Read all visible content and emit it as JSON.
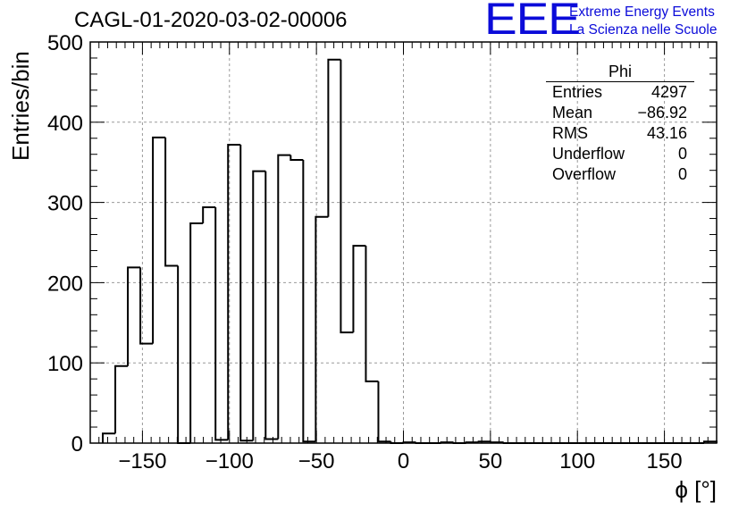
{
  "header": {
    "title": "CAGL-01-2020-03-02-00006",
    "logo": "EEE",
    "logo_line1": "Extreme Energy Events",
    "logo_line2": "La Scienza nelle Scuole"
  },
  "stats": {
    "name": "Phi",
    "rows": [
      {
        "label": "Entries",
        "value": "4297"
      },
      {
        "label": "Mean",
        "value": "−86.92"
      },
      {
        "label": "RMS",
        "value": "43.16"
      },
      {
        "label": "Underflow",
        "value": "0"
      },
      {
        "label": "Overflow",
        "value": "0"
      }
    ]
  },
  "chart_data": {
    "type": "bar",
    "style": "step-histogram",
    "xlabel": "ϕ [°]",
    "ylabel": "Entries/bin",
    "xlim": [
      -180,
      180
    ],
    "ylim": [
      0,
      500
    ],
    "bin_width": 7.2,
    "grid": true,
    "x_ticks": [
      -150,
      -100,
      -50,
      0,
      50,
      100,
      150
    ],
    "y_ticks": [
      0,
      100,
      200,
      300,
      400,
      500
    ],
    "bin_edges_start": -172.8,
    "values": [
      12,
      96,
      219,
      124,
      381,
      221,
      0,
      274,
      294,
      4,
      372,
      3,
      339,
      5,
      359,
      353,
      2,
      282,
      478,
      138,
      246,
      77,
      2,
      0,
      1,
      0,
      0,
      1,
      0,
      1,
      2,
      1,
      0,
      0,
      0,
      0,
      0,
      0,
      0,
      0,
      0,
      0,
      0,
      0,
      0,
      0,
      0,
      0,
      2
    ],
    "line_color": "#000000",
    "grid_color": "#9a9a9a"
  }
}
